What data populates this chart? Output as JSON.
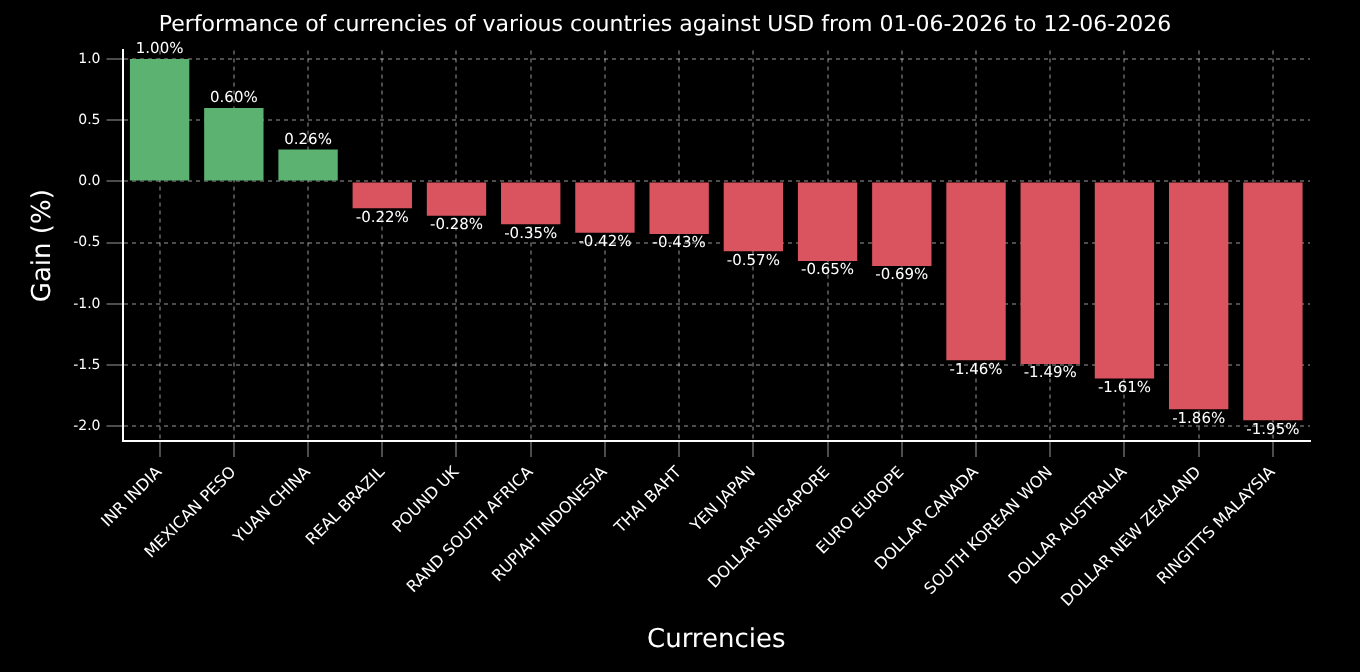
{
  "chart_data": {
    "type": "bar",
    "title": "Performance of currencies of various countries against USD from 01-06-2026 to 12-06-2026",
    "xlabel": "Currencies",
    "ylabel": "Gain (%)",
    "categories": [
      "INR INDIA",
      "MEXICAN PESO",
      "YUAN CHINA",
      "REAL BRAZIL",
      "POUND UK",
      "RAND SOUTH AFRICA",
      "RUPIAH INDONESIA",
      "THAI BAHT",
      "YEN JAPAN",
      "DOLLAR SINGAPORE",
      "EURO EUROPE",
      "DOLLAR CANADA",
      "SOUTH KOREAN WON",
      "DOLLAR AUSTRALIA",
      "DOLLAR NEW ZEALAND",
      "RINGITTS MALAYSIA"
    ],
    "values": [
      1.0,
      0.6,
      0.26,
      -0.22,
      -0.28,
      -0.35,
      -0.42,
      -0.43,
      -0.57,
      -0.65,
      -0.69,
      -1.46,
      -1.49,
      -1.61,
      -1.86,
      -1.95
    ],
    "value_labels": [
      "1.00%",
      "0.60%",
      "0.26%",
      "-0.22%",
      "-0.28%",
      "-0.35%",
      "-0.42%",
      "-0.43%",
      "-0.57%",
      "-0.65%",
      "-0.69%",
      "-1.46%",
      "-1.49%",
      "-1.61%",
      "-1.86%",
      "-1.95%"
    ],
    "colors": [
      "#5cb270",
      "#5cb270",
      "#5cb270",
      "#d9545e",
      "#d9545e",
      "#d9545e",
      "#d9545e",
      "#d9545e",
      "#d9545e",
      "#d9545e",
      "#d9545e",
      "#d9545e",
      "#d9545e",
      "#d9545e",
      "#d9545e",
      "#d9545e"
    ],
    "ylim": [
      -2.12,
      1.07
    ],
    "yticks": [
      {
        "value": -2,
        "label": "-2.0"
      },
      {
        "value": -1.5,
        "label": "-1.5"
      },
      {
        "value": -1,
        "label": "-1.0"
      },
      {
        "value": -0.5,
        "label": "-0.5"
      },
      {
        "value": 0,
        "label": "0.0"
      },
      {
        "value": 0.5,
        "label": "0.5"
      },
      {
        "value": 1,
        "label": "1.0"
      }
    ],
    "grid": true,
    "legend": false
  }
}
